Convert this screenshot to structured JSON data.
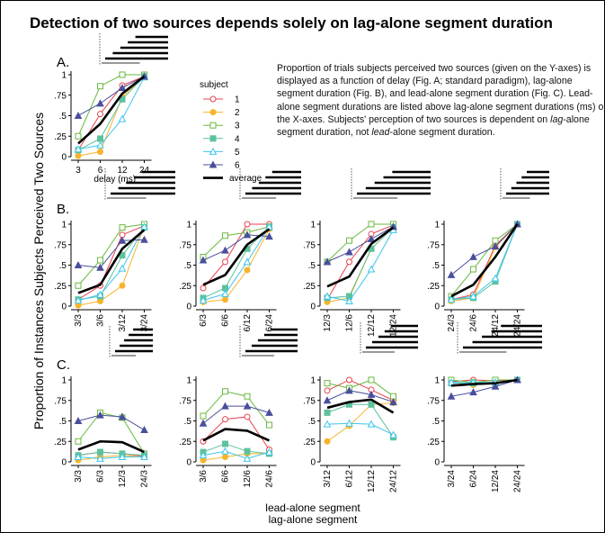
{
  "title": "Detection of two sources depends solely on lag-alone segment duration",
  "ylabel": "Proportion of Instances Subjects Perceived Two Sources",
  "xlabel_lines": [
    "lead-alone segment",
    "lag-alone segment"
  ],
  "panel_letters": [
    "A.",
    "B.",
    "C."
  ],
  "legend": {
    "title": "subject",
    "entries": [
      "1",
      "2",
      "3",
      "4",
      "5",
      "6",
      "average"
    ]
  },
  "description": {
    "parts": [
      "Proportion of trials subjects perceived two sources (given on the Y-axes) is displayed as a function of delay (Fig. A; standard paradigm), lag-alone segment duration (Fig. B), and lead-alone segment duration (Fig. C).  Lead-alone segment durations are listed above lag-alone segment durations (ms) on the X-axes.  Subjects' perception of two sources is dependent on ",
      "lag",
      "-alone segment duration, not ",
      "lead",
      "-alone segment duration."
    ]
  },
  "colors": {
    "s1": "#e8424c",
    "s2": "#f7b42c",
    "s3": "#6ab83e",
    "s4": "#5dc29c",
    "s5": "#3cc5ec",
    "s6": "#4a4f9c",
    "average": "#000000"
  },
  "chart_data": [
    {
      "type": "line",
      "panel": "A",
      "categories": [
        "3",
        "6",
        "12",
        "24"
      ],
      "xlabel": "delay (ms)",
      "yticks": [
        ".25",
        ".5",
        ".75",
        "1"
      ],
      "ylim": [
        0,
        1
      ],
      "series": [
        {
          "name": "1",
          "values": [
            0.08,
            0.52,
            0.87,
            0.98
          ]
        },
        {
          "name": "2",
          "values": [
            0.01,
            0.06,
            0.73,
            0.98
          ]
        },
        {
          "name": "3",
          "values": [
            0.25,
            0.86,
            1.0,
            1.0
          ]
        },
        {
          "name": "4",
          "values": [
            0.08,
            0.22,
            0.7,
            0.98
          ]
        },
        {
          "name": "5",
          "values": [
            0.09,
            0.14,
            0.46,
            0.97
          ]
        },
        {
          "name": "6",
          "values": [
            0.5,
            0.65,
            0.84,
            0.98
          ]
        },
        {
          "name": "average",
          "values": [
            0.16,
            0.4,
            0.77,
            0.98
          ]
        }
      ]
    },
    {
      "type": "line",
      "panel": "B1",
      "categories": [
        "3/3",
        "3/6",
        "3/12",
        "3/24"
      ],
      "yticks": [
        ".25",
        ".5",
        ".75",
        "1"
      ],
      "ylim": [
        0,
        1
      ],
      "series": [
        {
          "name": "1",
          "values": [
            0.08,
            0.25,
            0.87,
            0.98
          ]
        },
        {
          "name": "2",
          "values": [
            0.01,
            0.06,
            0.25,
            0.98
          ]
        },
        {
          "name": "3",
          "values": [
            0.25,
            0.56,
            0.96,
            1.0
          ]
        },
        {
          "name": "4",
          "values": [
            0.08,
            0.12,
            0.62,
            0.96
          ]
        },
        {
          "name": "5",
          "values": [
            0.07,
            0.14,
            0.46,
            0.97
          ]
        },
        {
          "name": "6",
          "values": [
            0.5,
            0.47,
            0.8,
            0.81
          ]
        },
        {
          "name": "average",
          "values": [
            0.16,
            0.26,
            0.7,
            0.93
          ]
        }
      ]
    },
    {
      "type": "line",
      "panel": "B2",
      "categories": [
        "6/3",
        "6/6",
        "6/12",
        "6/24"
      ],
      "yticks": [
        ".25",
        ".5",
        ".75",
        "1"
      ],
      "ylim": [
        0,
        1
      ],
      "series": [
        {
          "name": "1",
          "values": [
            0.22,
            0.54,
            1.0,
            1.0
          ]
        },
        {
          "name": "2",
          "values": [
            0.05,
            0.08,
            0.44,
            0.94
          ]
        },
        {
          "name": "3",
          "values": [
            0.6,
            0.86,
            0.9,
            0.97
          ]
        },
        {
          "name": "4",
          "values": [
            0.1,
            0.22,
            0.7,
            0.96
          ]
        },
        {
          "name": "5",
          "values": [
            0.07,
            0.15,
            0.54,
            0.97
          ]
        },
        {
          "name": "6",
          "values": [
            0.56,
            0.68,
            0.87,
            0.85
          ]
        },
        {
          "name": "average",
          "values": [
            0.26,
            0.38,
            0.75,
            0.94
          ]
        }
      ]
    },
    {
      "type": "line",
      "panel": "B3",
      "categories": [
        "12/3",
        "12/6",
        "12/12",
        "12/24"
      ],
      "yticks": [
        ".25",
        ".5",
        ".75",
        "1"
      ],
      "ylim": [
        0,
        1
      ],
      "series": [
        {
          "name": "1",
          "values": [
            0.08,
            0.54,
            0.88,
            0.99
          ]
        },
        {
          "name": "2",
          "values": [
            0.05,
            0.1,
            0.7,
            0.96
          ]
        },
        {
          "name": "3",
          "values": [
            0.54,
            0.8,
            1.0,
            1.0
          ]
        },
        {
          "name": "4",
          "values": [
            0.1,
            0.12,
            0.7,
            0.96
          ]
        },
        {
          "name": "5",
          "values": [
            0.12,
            0.06,
            0.45,
            0.93
          ]
        },
        {
          "name": "6",
          "values": [
            0.54,
            0.66,
            0.82,
            0.97
          ]
        },
        {
          "name": "average",
          "values": [
            0.24,
            0.36,
            0.76,
            0.96
          ]
        }
      ]
    },
    {
      "type": "line",
      "panel": "B4",
      "categories": [
        "24/3",
        "24/6",
        "24/12",
        "24/24"
      ],
      "yticks": [
        ".25",
        ".5",
        ".75",
        "1"
      ],
      "ylim": [
        0,
        1
      ],
      "series": [
        {
          "name": "1",
          "values": [
            0.08,
            0.14,
            0.74,
            1.0
          ]
        },
        {
          "name": "2",
          "values": [
            0.06,
            0.1,
            0.72,
            1.0
          ]
        },
        {
          "name": "3",
          "values": [
            0.12,
            0.45,
            0.8,
            1.0
          ]
        },
        {
          "name": "4",
          "values": [
            0.08,
            0.1,
            0.3,
            1.0
          ]
        },
        {
          "name": "5",
          "values": [
            0.08,
            0.12,
            0.34,
            1.0
          ]
        },
        {
          "name": "6",
          "values": [
            0.38,
            0.6,
            0.73,
            1.0
          ]
        },
        {
          "name": "average",
          "values": [
            0.12,
            0.26,
            0.6,
            1.0
          ]
        }
      ]
    },
    {
      "type": "line",
      "panel": "C1",
      "categories": [
        "3/3",
        "6/3",
        "12/3",
        "24/3"
      ],
      "yticks": [
        ".25",
        ".5",
        ".75",
        "1"
      ],
      "ylim": [
        0,
        1
      ],
      "series": [
        {
          "name": "1",
          "values": [
            0.08,
            0.12,
            0.1,
            0.07
          ]
        },
        {
          "name": "2",
          "values": [
            0.02,
            0.06,
            0.08,
            0.06
          ]
        },
        {
          "name": "3",
          "values": [
            0.25,
            0.6,
            0.54,
            0.1
          ]
        },
        {
          "name": "4",
          "values": [
            0.08,
            0.12,
            0.1,
            0.08
          ]
        },
        {
          "name": "5",
          "values": [
            0.06,
            0.04,
            0.06,
            0.06
          ]
        },
        {
          "name": "6",
          "values": [
            0.5,
            0.57,
            0.55,
            0.39
          ]
        },
        {
          "name": "average",
          "values": [
            0.15,
            0.25,
            0.24,
            0.12
          ]
        }
      ]
    },
    {
      "type": "line",
      "panel": "C2",
      "categories": [
        "3/6",
        "6/6",
        "12/6",
        "24/6"
      ],
      "yticks": [
        ".25",
        ".5",
        ".75",
        "1"
      ],
      "ylim": [
        0,
        1
      ],
      "series": [
        {
          "name": "1",
          "values": [
            0.25,
            0.52,
            0.55,
            0.15
          ]
        },
        {
          "name": "2",
          "values": [
            0.02,
            0.06,
            0.1,
            0.1
          ]
        },
        {
          "name": "3",
          "values": [
            0.56,
            0.86,
            0.8,
            0.45
          ]
        },
        {
          "name": "4",
          "values": [
            0.12,
            0.22,
            0.13,
            0.1
          ]
        },
        {
          "name": "5",
          "values": [
            0.08,
            0.13,
            0.04,
            0.12
          ]
        },
        {
          "name": "6",
          "values": [
            0.47,
            0.68,
            0.68,
            0.6
          ]
        },
        {
          "name": "average",
          "values": [
            0.26,
            0.4,
            0.38,
            0.26
          ]
        }
      ]
    },
    {
      "type": "line",
      "panel": "C3",
      "categories": [
        "3/12",
        "6/12",
        "12/12",
        "24/12"
      ],
      "yticks": [
        ".25",
        ".5",
        ".75",
        "1"
      ],
      "ylim": [
        0,
        1
      ],
      "series": [
        {
          "name": "1",
          "values": [
            0.87,
            1.0,
            0.88,
            0.75
          ]
        },
        {
          "name": "2",
          "values": [
            0.25,
            0.44,
            0.7,
            0.72
          ]
        },
        {
          "name": "3",
          "values": [
            0.96,
            0.9,
            1.0,
            0.8
          ]
        },
        {
          "name": "4",
          "values": [
            0.6,
            0.7,
            0.7,
            0.3
          ]
        },
        {
          "name": "5",
          "values": [
            0.46,
            0.47,
            0.46,
            0.33
          ]
        },
        {
          "name": "6",
          "values": [
            0.75,
            0.87,
            0.82,
            0.73
          ]
        },
        {
          "name": "average",
          "values": [
            0.66,
            0.73,
            0.76,
            0.6
          ]
        }
      ]
    },
    {
      "type": "line",
      "panel": "C4",
      "categories": [
        "3/24",
        "6/24",
        "12/24",
        "24/24"
      ],
      "yticks": [
        ".25",
        ".5",
        ".75",
        "1"
      ],
      "ylim": [
        0,
        1
      ],
      "series": [
        {
          "name": "1",
          "values": [
            0.98,
            1.0,
            0.99,
            1.0
          ]
        },
        {
          "name": "2",
          "values": [
            0.97,
            0.94,
            0.96,
            1.0
          ]
        },
        {
          "name": "3",
          "values": [
            1.0,
            0.97,
            1.0,
            1.0
          ]
        },
        {
          "name": "4",
          "values": [
            0.96,
            0.96,
            0.96,
            1.0
          ]
        },
        {
          "name": "5",
          "values": [
            0.97,
            0.97,
            0.97,
            1.0
          ]
        },
        {
          "name": "6",
          "values": [
            0.8,
            0.85,
            0.92,
            1.0
          ]
        },
        {
          "name": "average",
          "values": [
            0.93,
            0.95,
            0.96,
            1.0
          ]
        }
      ]
    }
  ]
}
